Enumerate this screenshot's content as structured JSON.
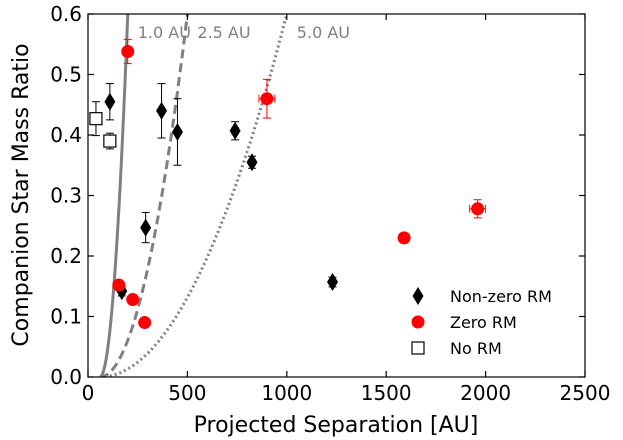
{
  "chart_data": {
    "type": "scatter",
    "title": "",
    "xlabel": "Projected Separation [AU]",
    "ylabel": "Companion Star Mass Ratio",
    "xlim": [
      0,
      2500
    ],
    "ylim": [
      0,
      0.6
    ],
    "xticks": [
      0,
      500,
      1000,
      1500,
      2000,
      2500
    ],
    "yticks": [
      0.0,
      0.1,
      0.2,
      0.3,
      0.4,
      0.5,
      0.6
    ],
    "xtick_labels": [
      "0",
      "500",
      "1000",
      "1500",
      "2000",
      "2500"
    ],
    "ytick_labels": [
      "0.0",
      "0.1",
      "0.2",
      "0.3",
      "0.4",
      "0.5",
      "0.6"
    ],
    "grid": false,
    "legend_position": "lower-right",
    "series": [
      {
        "name": "Non-zero RM",
        "marker": "diamond",
        "color": "#000000",
        "points": [
          {
            "x": 110,
            "y": 0.455,
            "yerr": 0.03,
            "xerr": 0
          },
          {
            "x": 370,
            "y": 0.44,
            "yerr": 0.045,
            "xerr": 0
          },
          {
            "x": 450,
            "y": 0.405,
            "yerr": 0.055,
            "xerr": 0
          },
          {
            "x": 740,
            "y": 0.407,
            "yerr": 0.015,
            "xerr": 15
          },
          {
            "x": 825,
            "y": 0.355,
            "yerr": 0.01,
            "xerr": 0
          },
          {
            "x": 290,
            "y": 0.247,
            "yerr": 0.025,
            "xerr": 0
          },
          {
            "x": 170,
            "y": 0.142,
            "yerr": 0.008,
            "xerr": 0
          },
          {
            "x": 1230,
            "y": 0.157,
            "yerr": 0.008,
            "xerr": 0
          }
        ]
      },
      {
        "name": "Zero RM",
        "marker": "circle",
        "color": "#ff0000",
        "points": [
          {
            "x": 200,
            "y": 0.538,
            "yerr": 0.02,
            "xerr": 0
          },
          {
            "x": 900,
            "y": 0.46,
            "yerr": 0.032,
            "xerr": 40
          },
          {
            "x": 155,
            "y": 0.152,
            "yerr": 0.008,
            "xerr": 0
          },
          {
            "x": 225,
            "y": 0.128,
            "yerr": 0,
            "xerr": 0
          },
          {
            "x": 285,
            "y": 0.09,
            "yerr": 0,
            "xerr": 0
          },
          {
            "x": 1590,
            "y": 0.23,
            "yerr": 0.008,
            "xerr": 20
          },
          {
            "x": 1960,
            "y": 0.278,
            "yerr": 0.015,
            "xerr": 40
          }
        ]
      },
      {
        "name": "No RM",
        "marker": "square",
        "color": "#000000",
        "points": [
          {
            "x": 40,
            "y": 0.427,
            "yerr": 0.028,
            "xerr": 0
          },
          {
            "x": 110,
            "y": 0.39,
            "yerr": 0.013,
            "xerr": 0
          }
        ]
      }
    ],
    "curves": [
      {
        "label": "1.0 AU",
        "style": "solid",
        "color": "#808080",
        "a": 1.0
      },
      {
        "label": "2.5 AU",
        "style": "dashed",
        "color": "#808080",
        "a": 2.5
      },
      {
        "label": "5.0 AU",
        "style": "dotted",
        "color": "#808080",
        "a": 5.0
      }
    ]
  }
}
